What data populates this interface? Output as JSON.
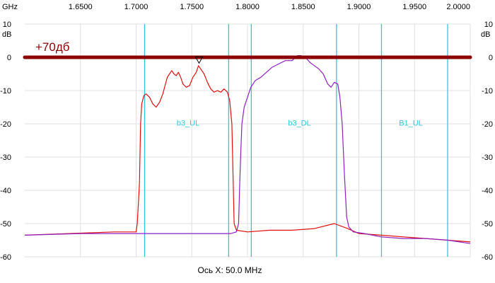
{
  "chart_data": {
    "type": "line",
    "top_axis_unit": "GHz",
    "left_axis_unit": "dB",
    "right_axis_unit": "dB",
    "xlabel": "Ось X: 50.0 MHz",
    "xlim": [
      1.6,
      2.0
    ],
    "x_ticks": [
      "1.6500",
      "1.7000",
      "1.7500",
      "1.8000",
      "1.8500",
      "1.9000",
      "1.9500",
      "2.0000"
    ],
    "ylim": [
      -60,
      10
    ],
    "y_ticks": [
      "10",
      "0",
      "-10",
      "-20",
      "-30",
      "-40",
      "-50",
      "-60"
    ],
    "reference_line": {
      "label": "+70дб",
      "value": 0,
      "color": "#8b0000"
    },
    "marker": {
      "x": 1.7565,
      "y": -2
    },
    "band_lines": [
      1.7076,
      1.7831,
      1.8034,
      1.8799,
      1.9203,
      1.9797
    ],
    "band_labels": [
      {
        "text": "b3_UL",
        "x": 1.7467,
        "y": -20.5
      },
      {
        "text": "b3_DL",
        "x": 1.8467,
        "y": -20.5
      },
      {
        "text": "B1_UL",
        "x": 1.9467,
        "y": -20.5
      }
    ],
    "series": [
      {
        "color": "#e01010",
        "values": [
          [
            1.6,
            -53.5
          ],
          [
            1.64,
            -53.0
          ],
          [
            1.68,
            -52.5
          ],
          [
            1.7,
            -52.5
          ],
          [
            1.701,
            -50.0
          ],
          [
            1.703,
            -38.0
          ],
          [
            1.704,
            -20.0
          ],
          [
            1.705,
            -14.0
          ],
          [
            1.707,
            -11.5
          ],
          [
            1.709,
            -11.0
          ],
          [
            1.712,
            -12.0
          ],
          [
            1.715,
            -14.0
          ],
          [
            1.718,
            -15.0
          ],
          [
            1.721,
            -13.5
          ],
          [
            1.724,
            -11.0
          ],
          [
            1.726,
            -8.5
          ],
          [
            1.728,
            -6.0
          ],
          [
            1.73,
            -5.0
          ],
          [
            1.732,
            -4.0
          ],
          [
            1.734,
            -5.0
          ],
          [
            1.736,
            -5.5
          ],
          [
            1.738,
            -4.5
          ],
          [
            1.74,
            -6.0
          ],
          [
            1.742,
            -8.0
          ],
          [
            1.745,
            -9.0
          ],
          [
            1.748,
            -8.5
          ],
          [
            1.751,
            -6.0
          ],
          [
            1.754,
            -4.5
          ],
          [
            1.756,
            -2.5
          ],
          [
            1.758,
            -3.5
          ],
          [
            1.761,
            -5.0
          ],
          [
            1.764,
            -7.5
          ],
          [
            1.767,
            -9.5
          ],
          [
            1.77,
            -10.5
          ],
          [
            1.773,
            -10.0
          ],
          [
            1.776,
            -10.5
          ],
          [
            1.779,
            -9.5
          ],
          [
            1.782,
            -10.5
          ],
          [
            1.784,
            -13.0
          ],
          [
            1.786,
            -20.0
          ],
          [
            1.787,
            -35.0
          ],
          [
            1.788,
            -50.0
          ],
          [
            1.79,
            -52.0
          ],
          [
            1.8,
            -52.5
          ],
          [
            1.82,
            -52.0
          ],
          [
            1.84,
            -52.0
          ],
          [
            1.86,
            -51.5
          ],
          [
            1.878,
            -50.0
          ],
          [
            1.89,
            -51.5
          ],
          [
            1.9,
            -53.0
          ],
          [
            1.92,
            -53.5
          ],
          [
            1.94,
            -54.0
          ],
          [
            1.96,
            -54.5
          ],
          [
            1.98,
            -55.0
          ],
          [
            2.0,
            -55.5
          ]
        ]
      },
      {
        "color": "#9020c0",
        "values": [
          [
            1.6,
            -53.5
          ],
          [
            1.65,
            -53.0
          ],
          [
            1.7,
            -53.0
          ],
          [
            1.75,
            -53.0
          ],
          [
            1.785,
            -53.0
          ],
          [
            1.79,
            -52.5
          ],
          [
            1.792,
            -50.0
          ],
          [
            1.793,
            -38.0
          ],
          [
            1.794,
            -28.0
          ],
          [
            1.795,
            -20.0
          ],
          [
            1.797,
            -15.0
          ],
          [
            1.8,
            -12.0
          ],
          [
            1.803,
            -9.0
          ],
          [
            1.807,
            -7.0
          ],
          [
            1.812,
            -6.0
          ],
          [
            1.817,
            -4.5
          ],
          [
            1.822,
            -3.0
          ],
          [
            1.828,
            -2.0
          ],
          [
            1.834,
            -1.0
          ],
          [
            1.84,
            -1.0
          ],
          [
            1.845,
            0.5
          ],
          [
            1.848,
            0.5
          ],
          [
            1.852,
            0.0
          ],
          [
            1.856,
            -1.5
          ],
          [
            1.86,
            -2.5
          ],
          [
            1.864,
            -3.5
          ],
          [
            1.868,
            -5.0
          ],
          [
            1.872,
            -8.0
          ],
          [
            1.875,
            -9.0
          ],
          [
            1.878,
            -7.5
          ],
          [
            1.881,
            -8.0
          ],
          [
            1.883,
            -12.0
          ],
          [
            1.885,
            -20.0
          ],
          [
            1.887,
            -35.0
          ],
          [
            1.889,
            -48.0
          ],
          [
            1.891,
            -51.0
          ],
          [
            1.895,
            -52.5
          ],
          [
            1.905,
            -53.0
          ],
          [
            1.92,
            -54.0
          ],
          [
            1.94,
            -54.5
          ],
          [
            1.96,
            -54.5
          ],
          [
            1.98,
            -55.0
          ],
          [
            2.0,
            -56.0
          ]
        ]
      }
    ]
  }
}
